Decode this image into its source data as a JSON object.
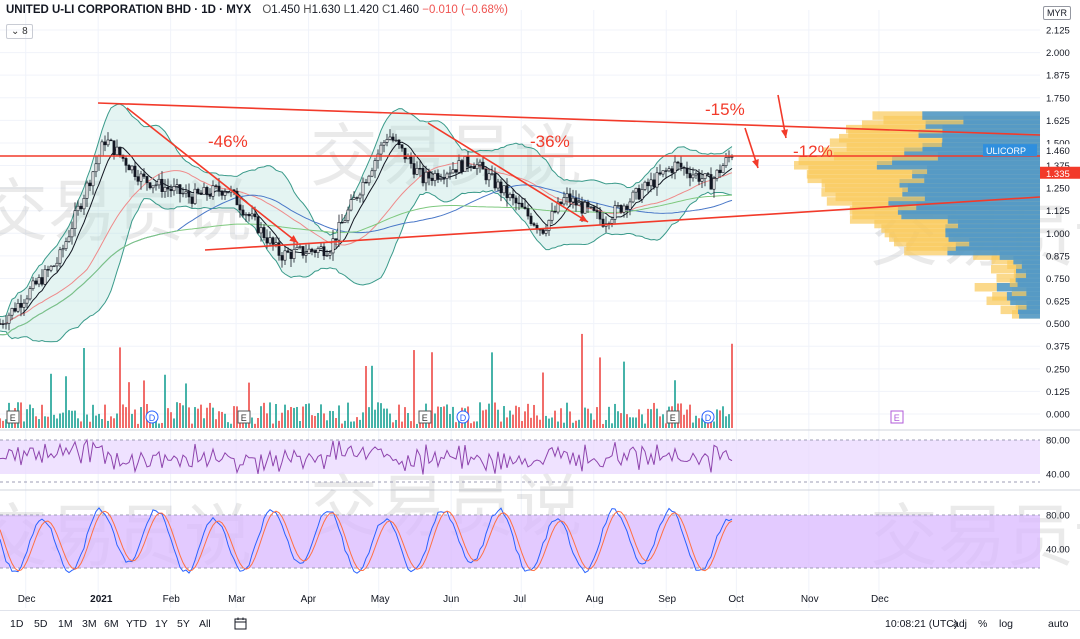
{
  "header": {
    "symbol_line": "UNITED U-LI CORPORATION BHD · 1D · MYX",
    "open_label": "O",
    "open": "1.450",
    "high_label": "H",
    "high": "1.630",
    "low_label": "L",
    "low": "1.420",
    "close_label": "C",
    "close": "1.460",
    "change": "−0.010 (−0.68%)",
    "indicator_badge": "8",
    "currency": "MYR"
  },
  "chart_data": {
    "type": "candlestick",
    "title": "UNITED U-LI CORPORATION BHD",
    "interval": "1D",
    "exchange": "MYX",
    "x_ticks": [
      "Dec",
      "2021",
      "Feb",
      "Mar",
      "Apr",
      "May",
      "Jun",
      "Jul",
      "Aug",
      "Sep",
      "Oct",
      "Nov",
      "Dec"
    ],
    "y_ticks": [
      "2.125",
      "2.000",
      "1.875",
      "1.750",
      "1.625",
      "1.500",
      "1.460",
      "1.375",
      "1.335",
      "1.250",
      "1.125",
      "1.000",
      "0.875",
      "0.750",
      "0.625",
      "0.500",
      "0.375",
      "0.250",
      "0.125",
      "0.000"
    ],
    "y_range": [
      0,
      2.125
    ],
    "last_price": 1.46,
    "last_price_label": "ULICORP",
    "horizontal_level": 1.335,
    "price_path": [
      {
        "date": "2020-11-20",
        "close": 0.5
      },
      {
        "date": "2020-12-15",
        "close": 0.85
      },
      {
        "date": "2021-01-04",
        "close": 1.52
      },
      {
        "date": "2021-01-20",
        "close": 1.3
      },
      {
        "date": "2021-02-10",
        "close": 1.2
      },
      {
        "date": "2021-02-25",
        "close": 1.25
      },
      {
        "date": "2021-03-20",
        "close": 0.88
      },
      {
        "date": "2021-04-10",
        "close": 0.92
      },
      {
        "date": "2021-05-05",
        "close": 1.55
      },
      {
        "date": "2021-05-20",
        "close": 1.3
      },
      {
        "date": "2021-06-10",
        "close": 1.4
      },
      {
        "date": "2021-07-10",
        "close": 1.02
      },
      {
        "date": "2021-07-20",
        "close": 1.2
      },
      {
        "date": "2021-08-05",
        "close": 1.07
      },
      {
        "date": "2021-09-05",
        "close": 1.38
      },
      {
        "date": "2021-09-20",
        "close": 1.28
      },
      {
        "date": "2021-09-30",
        "close": 1.46
      }
    ],
    "annotations": [
      "-46%",
      "-36%",
      "-15%",
      "-12%"
    ],
    "markers": [
      "E",
      "D",
      "E",
      "E",
      "D",
      "E",
      "D",
      "E"
    ],
    "rsi_ticks": [
      "80.00",
      "40.00"
    ],
    "stoch_ticks": [
      "80.00",
      "40.00"
    ],
    "grid": true,
    "legend": "none"
  },
  "watermark": "交易员说",
  "bottom_bar": {
    "ranges": [
      "1D",
      "5D",
      "1M",
      "3M",
      "6M",
      "YTD",
      "1Y",
      "5Y",
      "All"
    ],
    "clock": "10:08:21 (UTC)",
    "right_buttons": [
      "%",
      "log",
      "auto"
    ],
    "adj": "adj"
  },
  "colors": {
    "up": "#26a69a",
    "down": "#ef5350",
    "annotation": "#f23a2a",
    "bb_fill": "#b2dfdb",
    "rsi_fill": "#e9d8ff",
    "stoch_fill": "#d9b8ff",
    "vp_blue": "#2f8fde",
    "vp_yellow": "#f9c95a"
  }
}
